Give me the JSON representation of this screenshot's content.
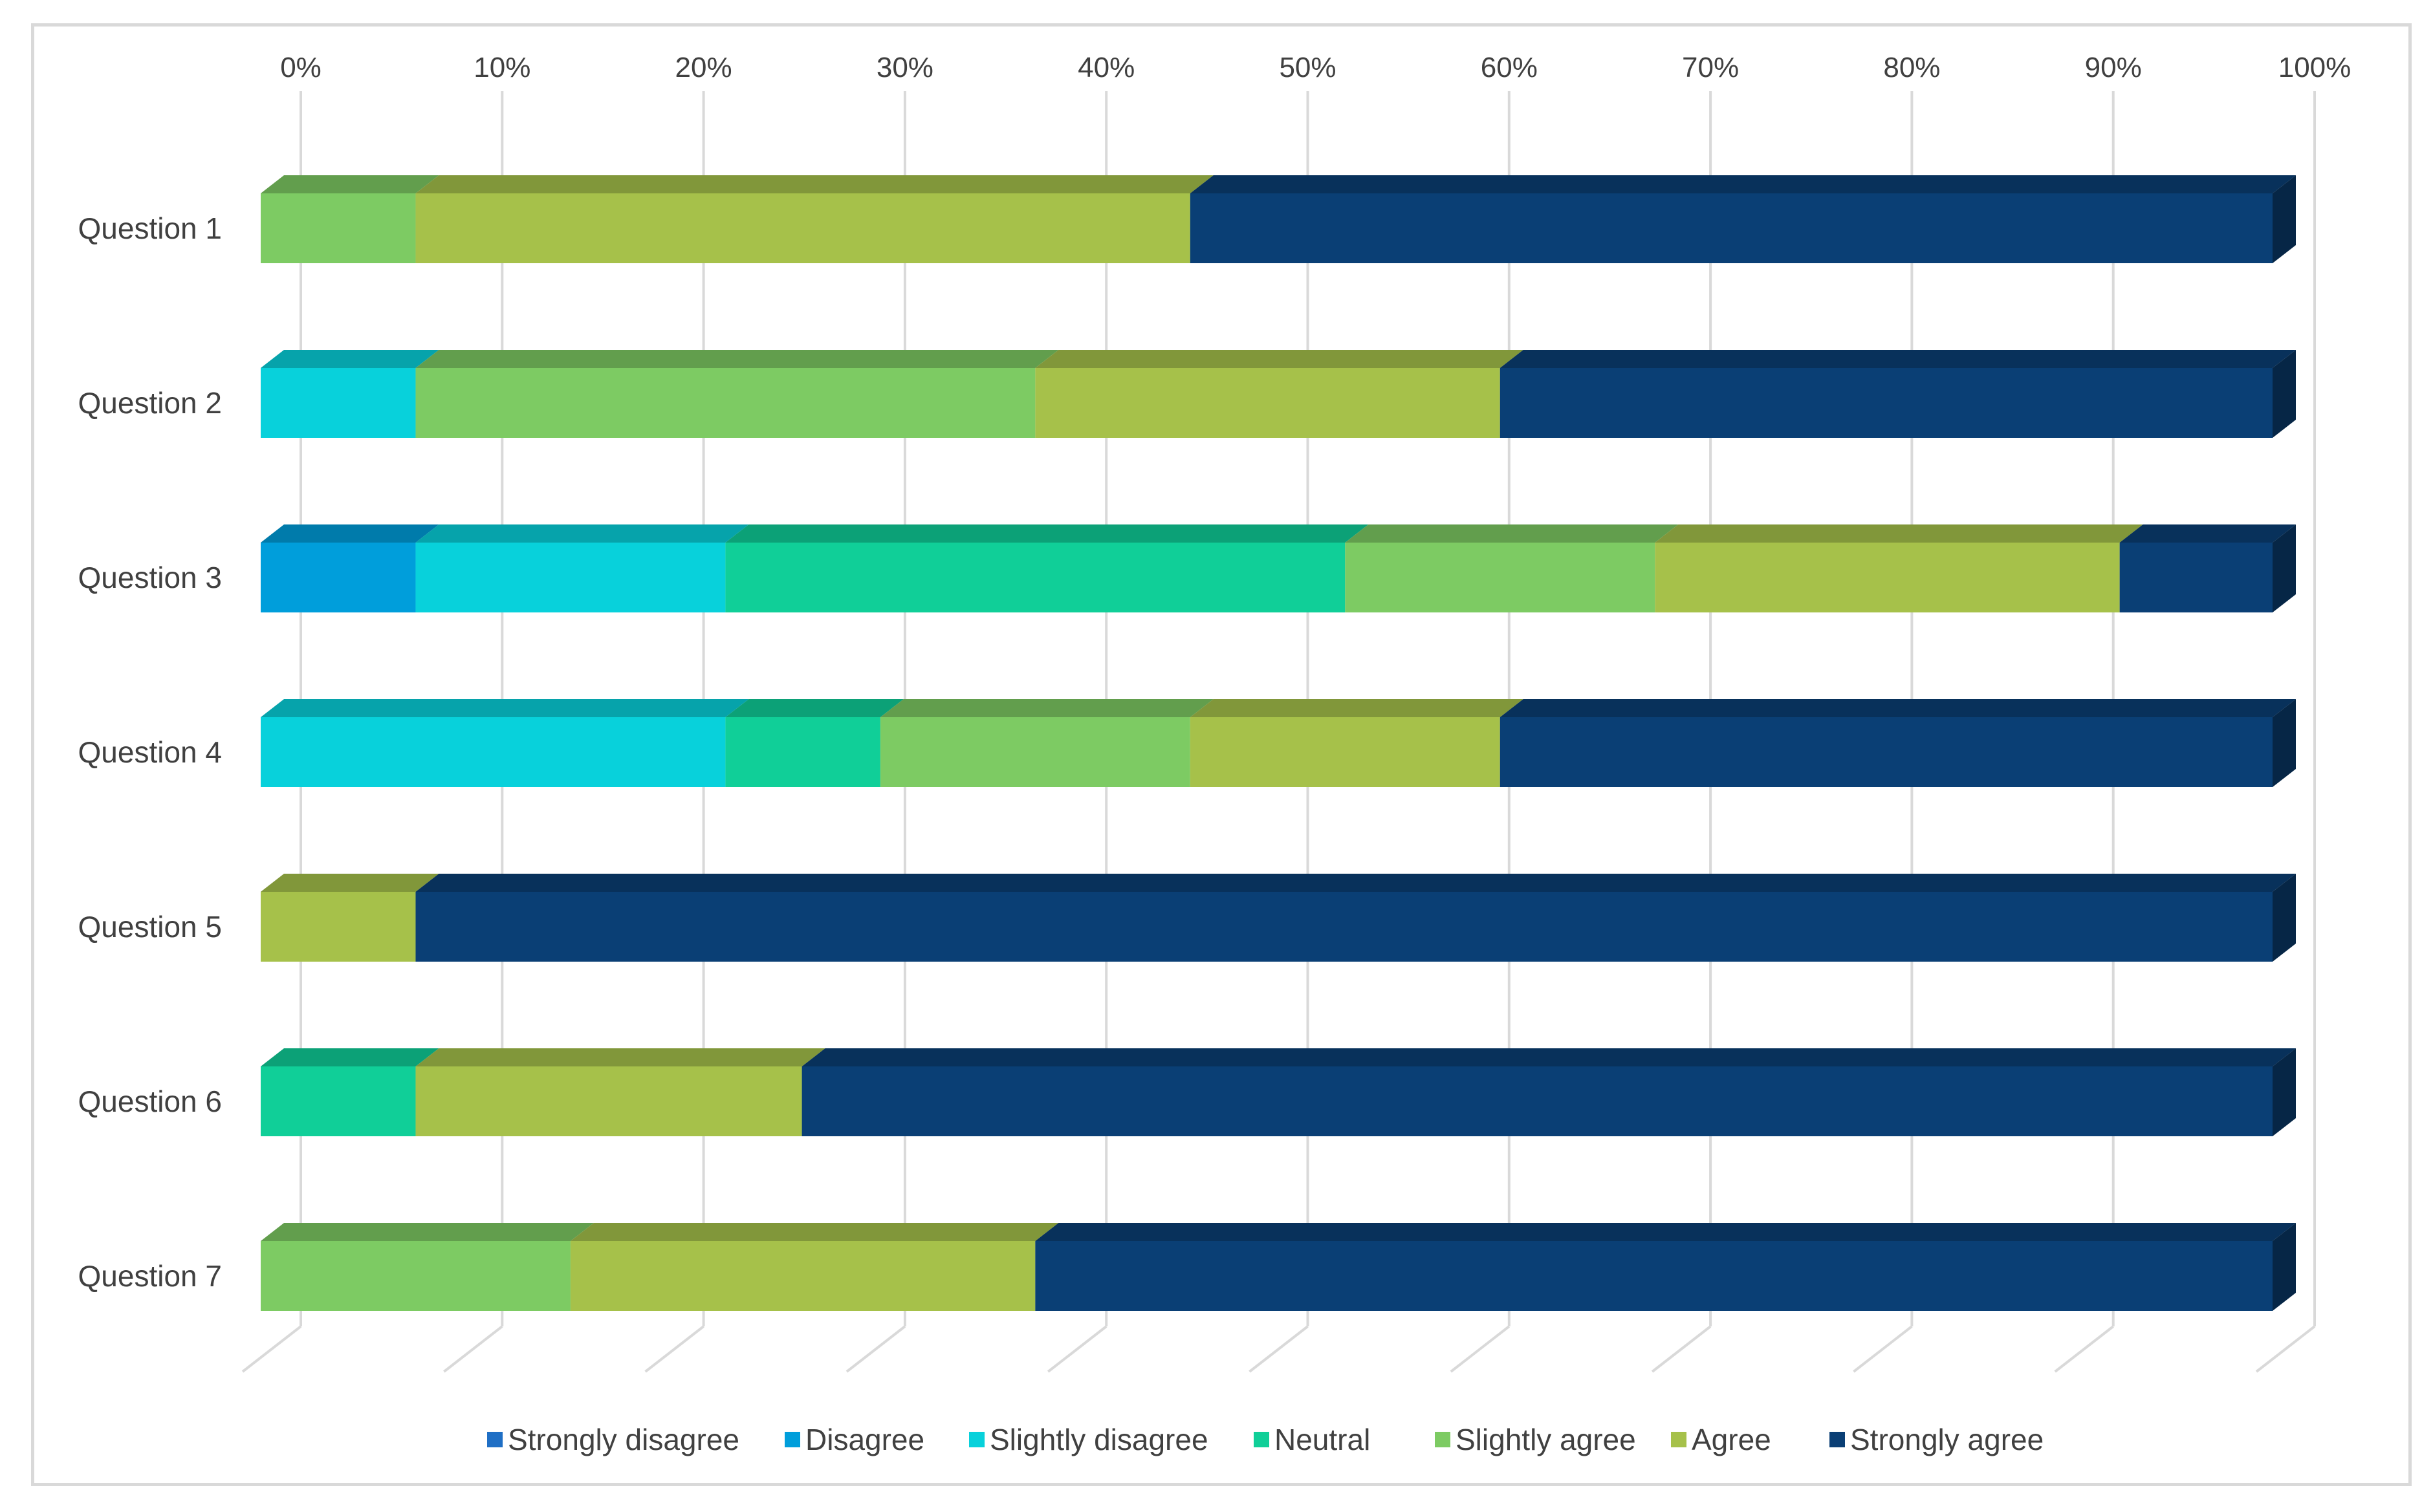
{
  "chart_data": {
    "type": "bar",
    "orientation": "horizontal",
    "stacked": true,
    "percent_stacked": true,
    "style": "3d",
    "title": "",
    "xlabel": "",
    "ylabel": "",
    "xlim": [
      0,
      100
    ],
    "x_ticks": [
      "0%",
      "10%",
      "20%",
      "30%",
      "40%",
      "50%",
      "60%",
      "70%",
      "80%",
      "90%",
      "100%"
    ],
    "gridlines": true,
    "legend_position": "bottom",
    "categories": [
      "Question 1",
      "Question 2",
      "Question 3",
      "Question 4",
      "Question 5",
      "Question 6",
      "Question 7"
    ],
    "series": [
      {
        "name": "Strongly disagree",
        "color": "#1f6fc5",
        "values": [
          0,
          0,
          0,
          0,
          0,
          0,
          0
        ]
      },
      {
        "name": "Disagree",
        "color": "#009edb",
        "values": [
          0,
          0,
          7.7,
          0,
          0,
          0,
          0
        ]
      },
      {
        "name": "Slightly disagree",
        "color": "#08d1db",
        "values": [
          0,
          7.7,
          15.4,
          23.1,
          0,
          0,
          0
        ]
      },
      {
        "name": "Neutral",
        "color": "#10cf98",
        "values": [
          0,
          0,
          30.8,
          7.7,
          0,
          7.7,
          0
        ]
      },
      {
        "name": "Slightly agree",
        "color": "#7dcb63",
        "values": [
          7.7,
          30.8,
          15.4,
          15.4,
          0,
          0,
          15.4
        ]
      },
      {
        "name": "Agree",
        "color": "#a6c14a",
        "values": [
          38.5,
          23.1,
          23.1,
          15.4,
          7.7,
          19.2,
          23.1
        ]
      },
      {
        "name": "Strongly agree",
        "color": "#0a3f75",
        "values": [
          53.8,
          38.4,
          7.6,
          38.4,
          92.3,
          73.1,
          61.5
        ]
      }
    ]
  }
}
